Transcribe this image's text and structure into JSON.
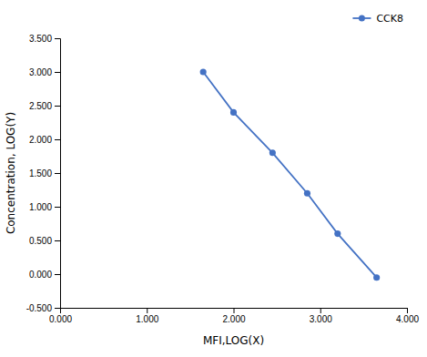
{
  "chart_data": {
    "type": "line",
    "xlabel": "MFI,LOG(X)",
    "ylabel": "Concentration, LOG(Y)",
    "x": [
      1.65,
      2.0,
      2.45,
      2.85,
      3.2,
      3.65
    ],
    "series": [
      {
        "name": "CCK8",
        "color": "#4472C4",
        "marker": "circle",
        "line_style": "solid",
        "values": [
          3.0,
          2.4,
          1.8,
          1.2,
          0.6,
          -0.05
        ]
      }
    ],
    "xlim": [
      0.0,
      4.0
    ],
    "ylim": [
      -0.5,
      3.5
    ],
    "xticks": [
      {
        "value": 0.0,
        "label": "0.000"
      },
      {
        "value": 1.0,
        "label": "1.000"
      },
      {
        "value": 2.0,
        "label": "2.000"
      },
      {
        "value": 3.0,
        "label": "3.000"
      },
      {
        "value": 4.0,
        "label": "4.000"
      }
    ],
    "yticks": [
      {
        "value": -0.5,
        "label": "-0.500"
      },
      {
        "value": 0.0,
        "label": "0.000"
      },
      {
        "value": 0.5,
        "label": "0.500"
      },
      {
        "value": 1.0,
        "label": "1.000"
      },
      {
        "value": 1.5,
        "label": "1.500"
      },
      {
        "value": 2.0,
        "label": "2.000"
      },
      {
        "value": 2.5,
        "label": "2.500"
      },
      {
        "value": 3.0,
        "label": "3.000"
      },
      {
        "value": 3.5,
        "label": "3.500"
      }
    ],
    "grid": false,
    "legend": "upper right"
  }
}
